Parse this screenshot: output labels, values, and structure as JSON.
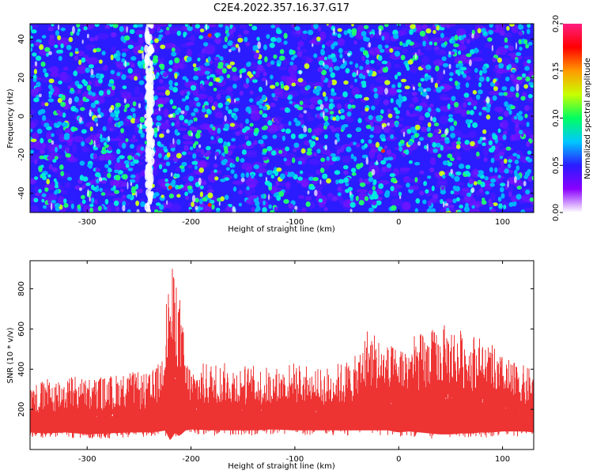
{
  "title": "C2E4.2022.357.16.37.G17",
  "chart_data": [
    {
      "type": "heatmap",
      "xlabel": "Height of straight line (km)",
      "ylabel": "Frequency (Hz)",
      "xlim": [
        -355,
        130
      ],
      "ylim": [
        -50,
        48
      ],
      "xticks": [
        -300,
        -200,
        -100,
        0,
        100
      ],
      "yticks": [
        -40,
        -20,
        0,
        20,
        40
      ],
      "colorbar": {
        "label": "Normalized spectral amplitude",
        "range": [
          0.0,
          0.2
        ],
        "ticks": [
          "0.00",
          "0.05",
          "0.10",
          "0.15",
          "0.20"
        ],
        "colors": [
          "#ffffff",
          "#8a00ff",
          "#2a1cff",
          "#00c8ff",
          "#00ff60",
          "#c8ff00",
          "#ff9a00",
          "#ff0000",
          "#ff1e80"
        ]
      },
      "background_color": "#2a1cff",
      "notable_features": [
        {
          "x": -240,
          "note": "vertical white/low-amplitude band"
        },
        {
          "x": -182,
          "note": "red spots at 42 Hz and -46 Hz"
        },
        {
          "x": -15,
          "note": "red spot at -18 Hz"
        }
      ]
    },
    {
      "type": "line",
      "xlabel": "Height of straight line (km)",
      "ylabel": "SNR (10 * v/v)",
      "xlim": [
        -355,
        130
      ],
      "ylim": [
        0,
        940
      ],
      "xticks": [
        -300,
        -200,
        -100,
        0,
        100
      ],
      "yticks": [
        200,
        400,
        600,
        800
      ],
      "color": "#ee3333",
      "envelope": {
        "x": [
          -355,
          -340,
          -320,
          -300,
          -280,
          -260,
          -240,
          -230,
          -225,
          -220,
          -215,
          -212,
          -205,
          -200,
          -180,
          -160,
          -140,
          -120,
          -100,
          -80,
          -60,
          -40,
          -30,
          -20,
          -10,
          0,
          10,
          20,
          30,
          40,
          50,
          60,
          70,
          80,
          90,
          100,
          110,
          120,
          130
        ],
        "lower": [
          60,
          55,
          60,
          50,
          55,
          60,
          60,
          65,
          70,
          20,
          60,
          40,
          70,
          75,
          70,
          70,
          70,
          75,
          70,
          70,
          70,
          70,
          70,
          70,
          70,
          60,
          65,
          60,
          55,
          50,
          50,
          55,
          55,
          60,
          60,
          65,
          65,
          65,
          60
        ],
        "upper": [
          330,
          350,
          380,
          360,
          370,
          390,
          380,
          440,
          700,
          910,
          900,
          840,
          480,
          420,
          440,
          430,
          420,
          410,
          440,
          400,
          430,
          470,
          620,
          580,
          520,
          520,
          560,
          580,
          600,
          610,
          640,
          600,
          590,
          560,
          520,
          470,
          440,
          420,
          400
        ]
      }
    }
  ]
}
